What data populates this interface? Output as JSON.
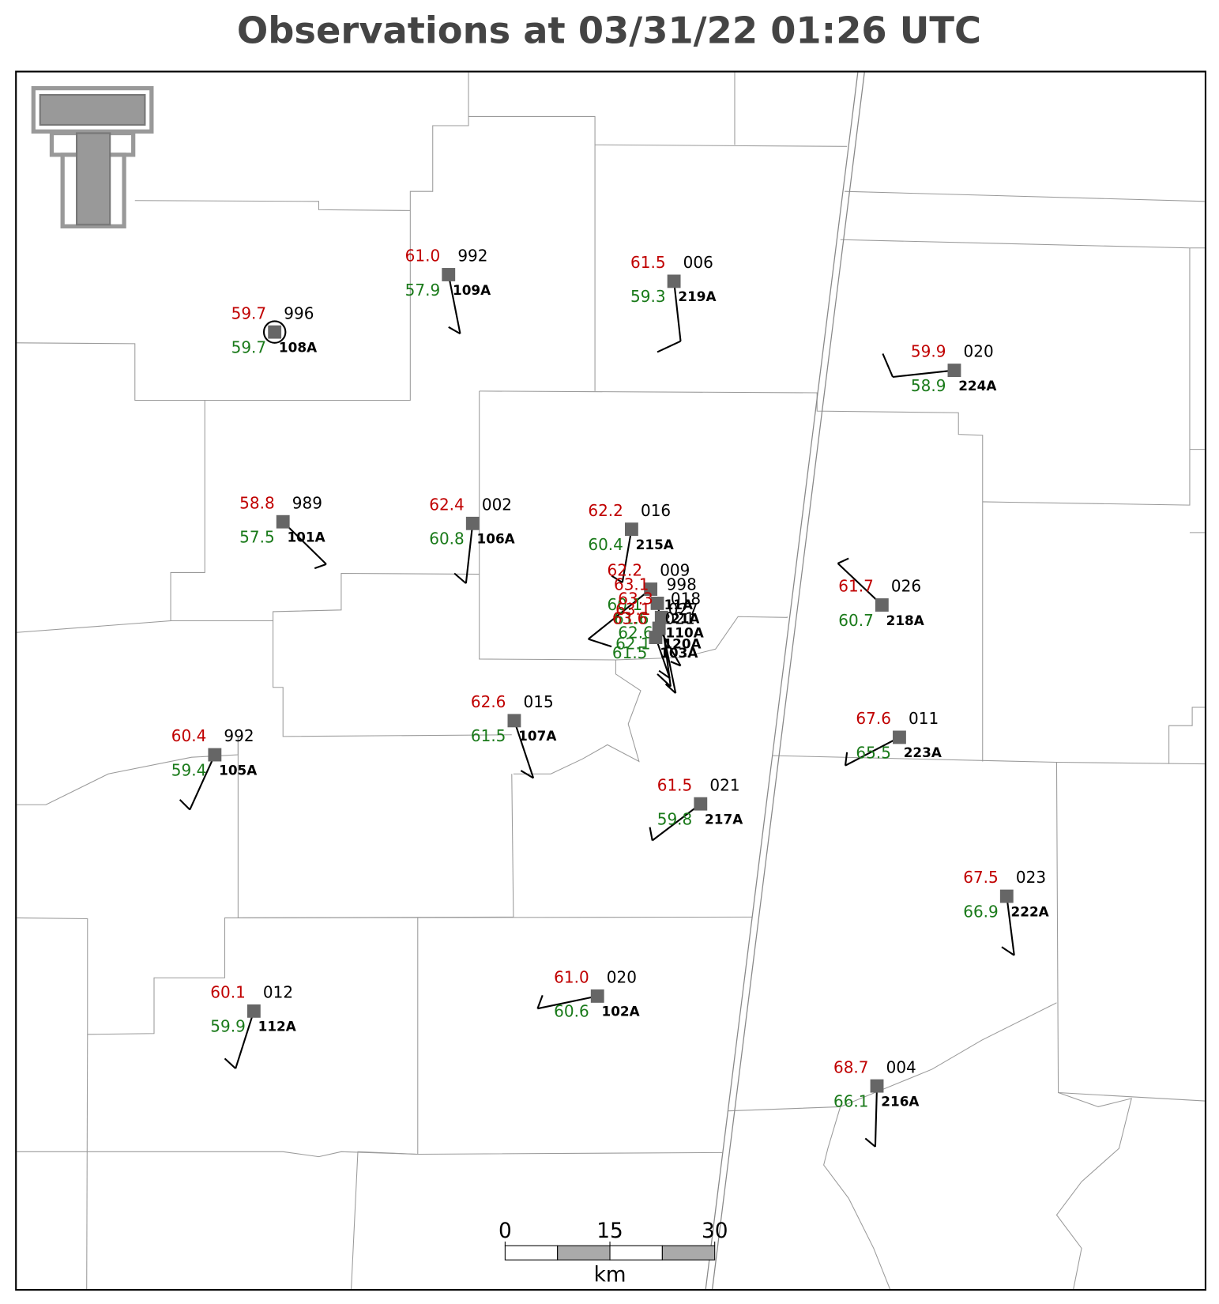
{
  "title": "Observations at 03/31/22 01:26 UTC",
  "stations": [
    {
      "id": "108A",
      "temperature": "59.7",
      "dewpoint": "59.7",
      "pressure": "996"
    },
    {
      "id": "109A",
      "temperature": "61.0",
      "dewpoint": "57.9",
      "pressure": "992"
    },
    {
      "id": "219A",
      "temperature": "61.5",
      "dewpoint": "59.3",
      "pressure": "006"
    },
    {
      "id": "224A",
      "temperature": "59.9",
      "dewpoint": "58.9",
      "pressure": "020"
    },
    {
      "id": "101A",
      "temperature": "58.8",
      "dewpoint": "57.5",
      "pressure": "989"
    },
    {
      "id": "106A",
      "temperature": "62.4",
      "dewpoint": "60.8",
      "pressure": "002"
    },
    {
      "id": "215A",
      "temperature": "62.2",
      "dewpoint": "60.4",
      "pressure": "016"
    },
    {
      "id": "218A",
      "temperature": "61.7",
      "dewpoint": "60.7",
      "pressure": "026"
    },
    {
      "id": "107A",
      "temperature": "62.6",
      "dewpoint": "61.5",
      "pressure": "015"
    },
    {
      "id": "105A",
      "temperature": "60.4",
      "dewpoint": "59.4",
      "pressure": "992"
    },
    {
      "id": "223A",
      "temperature": "67.6",
      "dewpoint": "65.5",
      "pressure": "011"
    },
    {
      "id": "217A",
      "temperature": "61.5",
      "dewpoint": "59.8",
      "pressure": "021"
    },
    {
      "id": "222A",
      "temperature": "67.5",
      "dewpoint": "66.9",
      "pressure": "023"
    },
    {
      "id": "102A",
      "temperature": "61.0",
      "dewpoint": "60.6",
      "pressure": "020"
    },
    {
      "id": "112A",
      "temperature": "60.1",
      "dewpoint": "59.9",
      "pressure": "012"
    },
    {
      "id": "216A",
      "temperature": "68.7",
      "dewpoint": "66.1",
      "pressure": "004"
    },
    {
      "id": "111A",
      "temperature": "62.2",
      "dewpoint": "60.1",
      "pressure": "009"
    },
    {
      "id": "221A",
      "temperature": "63.1",
      "dewpoint": "61.6",
      "pressure": "998"
    },
    {
      "id": "110A",
      "temperature": "63.3",
      "dewpoint": "62.6",
      "pressure": "018"
    },
    {
      "id": "120A",
      "temperature": "63.1",
      "dewpoint": "62.1",
      "pressure": "027"
    },
    {
      "id": "103A",
      "temperature": "63.6",
      "dewpoint": "61.5",
      "pressure": "021"
    }
  ],
  "scale_bar": {
    "ticks": [
      0,
      15,
      30
    ],
    "unit": "km"
  }
}
